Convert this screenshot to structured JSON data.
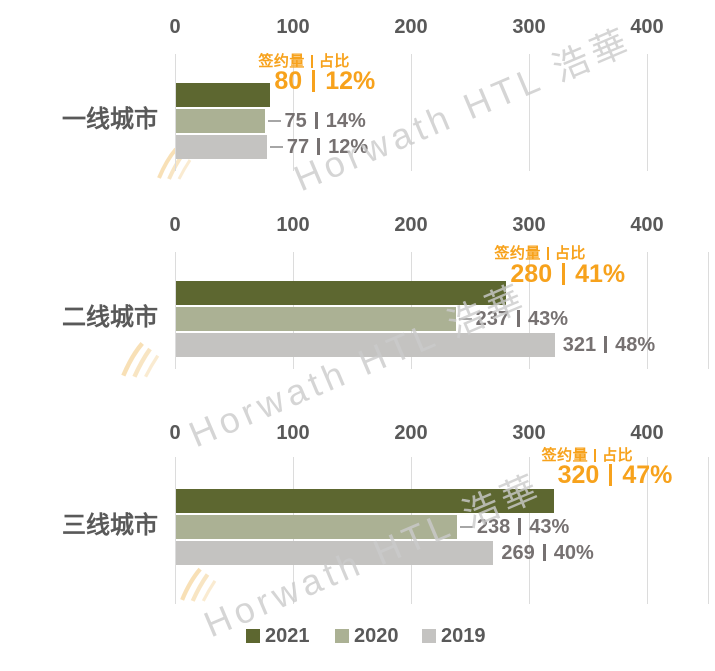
{
  "colors": {
    "accent": "#f7a21c",
    "text_dark": "#595959",
    "text_gray": "#767171",
    "grid": "#dcdcdc",
    "bar_2021": "#5d6730",
    "bar_2020": "#abb194",
    "bar_2019": "#c4c3c1"
  },
  "axis": {
    "ticks": [
      "0",
      "100",
      "200",
      "300",
      "400"
    ]
  },
  "value_header": {
    "volume": "签约量",
    "share": "占比"
  },
  "watermark": "Horwath HTL 浩華",
  "legend": [
    {
      "label": "2021",
      "color": "#5d6730"
    },
    {
      "label": "2020",
      "color": "#abb194"
    },
    {
      "label": "2019",
      "color": "#c4c3c1"
    }
  ],
  "charts": [
    {
      "category": "一线城市",
      "series": [
        {
          "year": "2021",
          "value": 80,
          "share": "12%",
          "leader": false
        },
        {
          "year": "2020",
          "value": 75,
          "share": "14%",
          "leader": true
        },
        {
          "year": "2019",
          "value": 77,
          "share": "12%",
          "leader": true
        }
      ]
    },
    {
      "category": "二线城市",
      "series": [
        {
          "year": "2021",
          "value": 280,
          "share": "41%",
          "leader": false
        },
        {
          "year": "2020",
          "value": 237,
          "share": "43%",
          "leader": true
        },
        {
          "year": "2019",
          "value": 321,
          "share": "48%",
          "leader": false
        }
      ]
    },
    {
      "category": "三线城市",
      "series": [
        {
          "year": "2021",
          "value": 320,
          "share": "47%",
          "leader": false
        },
        {
          "year": "2020",
          "value": 238,
          "share": "43%",
          "leader": true
        },
        {
          "year": "2019",
          "value": 269,
          "share": "40%",
          "leader": false
        }
      ]
    }
  ],
  "chart_data": {
    "type": "bar",
    "orientation": "horizontal",
    "categories": [
      "一线城市",
      "二线城市",
      "三线城市"
    ],
    "series": [
      {
        "name": "2021",
        "values": [
          80,
          280,
          320
        ],
        "shares": [
          "12%",
          "41%",
          "47%"
        ],
        "color": "#5d6730",
        "highlighted": true
      },
      {
        "name": "2020",
        "values": [
          75,
          237,
          238
        ],
        "shares": [
          "14%",
          "43%",
          "43%"
        ],
        "color": "#abb194",
        "highlighted": false
      },
      {
        "name": "2019",
        "values": [
          77,
          321,
          269
        ],
        "shares": [
          "12%",
          "48%",
          "40%"
        ],
        "color": "#c4c3c1",
        "highlighted": false
      }
    ],
    "value_label_header": "签约量 | 占比",
    "xlim": [
      0,
      400
    ],
    "x_ticks": [
      0,
      100,
      200,
      300,
      400
    ],
    "grid": true,
    "legend_position": "bottom",
    "watermark": "Horwath HTL 浩華"
  }
}
